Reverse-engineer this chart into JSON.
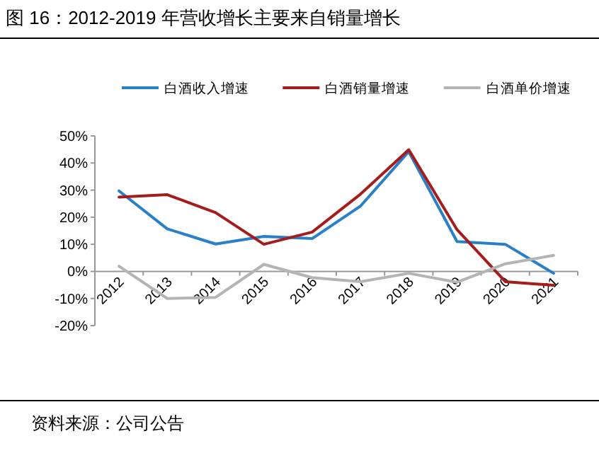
{
  "chart_data": {
    "type": "line",
    "title": "图 16：2012-2019 年营收增长主要来自销量增长",
    "categories": [
      "2012",
      "2013",
      "2014",
      "2015",
      "2016",
      "2017",
      "2018",
      "2019",
      "2020",
      "2021"
    ],
    "series": [
      {
        "name": "白酒收入增速",
        "color": "#2a7fc9",
        "values": [
          29.7,
          15.7,
          10.1,
          12.9,
          12.1,
          24.1,
          44.2,
          11,
          10,
          -0.7
        ]
      },
      {
        "name": "白酒销量增速",
        "color": "#a51c1c",
        "values": [
          27.4,
          28.3,
          21.7,
          10,
          14.5,
          28.5,
          44.9,
          15.4,
          -3.8,
          -5.1
        ]
      },
      {
        "name": "白酒单价增速",
        "color": "#b4b4b4",
        "values": [
          1.9,
          -10,
          -9.6,
          2.6,
          -2.3,
          -3.8,
          -0.7,
          -4,
          2.8,
          5.9
        ]
      }
    ],
    "ylim": [
      -20,
      50
    ],
    "yticks": [
      {
        "value": -20,
        "label": "-20%"
      },
      {
        "value": -10,
        "label": "-10%"
      },
      {
        "value": 0,
        "label": "0%"
      },
      {
        "value": 10,
        "label": "10%"
      },
      {
        "value": 20,
        "label": "20%"
      },
      {
        "value": 30,
        "label": "30%"
      },
      {
        "value": 40,
        "label": "40%"
      },
      {
        "value": 50,
        "label": "50%"
      }
    ],
    "legend": "top",
    "grid": false,
    "marker": "none",
    "line_style": "solid",
    "annotations": [
      "资料来源：公司公告"
    ]
  }
}
